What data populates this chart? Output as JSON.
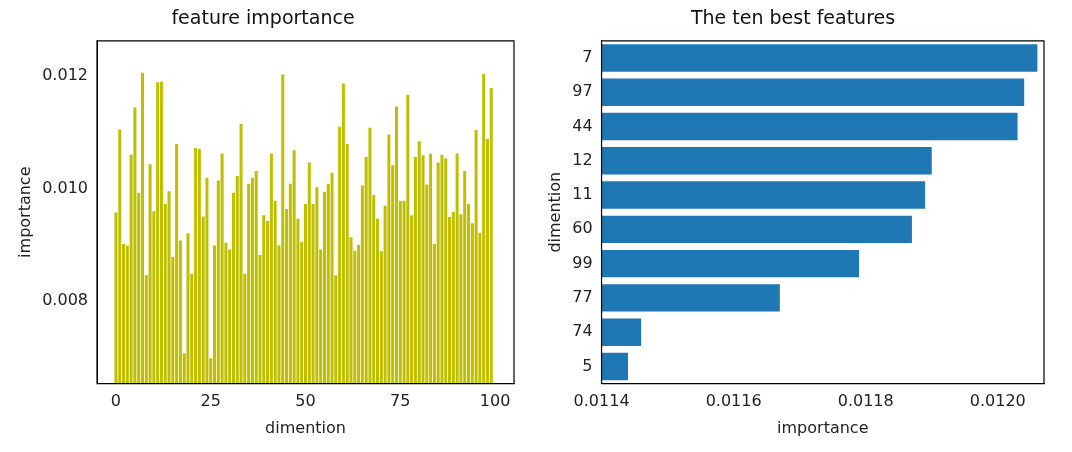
{
  "chart_data": [
    {
      "type": "bar",
      "title": "feature importance",
      "xlabel": "dimention",
      "ylabel": "importance",
      "x": [
        0,
        1,
        2,
        3,
        4,
        5,
        6,
        7,
        8,
        9,
        10,
        11,
        12,
        13,
        14,
        15,
        16,
        17,
        18,
        19,
        20,
        21,
        22,
        23,
        24,
        25,
        26,
        27,
        28,
        29,
        30,
        31,
        32,
        33,
        34,
        35,
        36,
        37,
        38,
        39,
        40,
        41,
        42,
        43,
        44,
        45,
        46,
        47,
        48,
        49,
        50,
        51,
        52,
        53,
        54,
        55,
        56,
        57,
        58,
        59,
        60,
        61,
        62,
        63,
        64,
        65,
        66,
        67,
        68,
        69,
        70,
        71,
        72,
        73,
        74,
        75,
        76,
        77,
        78,
        79,
        80,
        81,
        82,
        83,
        84,
        85,
        86,
        87,
        88,
        89,
        90,
        91,
        92,
        93,
        94,
        95,
        96,
        97,
        98,
        99
      ],
      "values": [
        0.00957,
        0.01105,
        0.00901,
        0.00898,
        0.0106,
        0.01144,
        0.00992,
        0.01206,
        0.00845,
        0.01043,
        0.00959,
        0.01189,
        0.0119,
        0.00972,
        0.00995,
        0.00878,
        0.01079,
        0.00907,
        0.00706,
        0.0092,
        0.00848,
        0.01072,
        0.0107,
        0.0095,
        0.01019,
        0.00697,
        0.00898,
        0.01014,
        0.01062,
        0.00903,
        0.00891,
        0.00992,
        0.01022,
        0.01115,
        0.00848,
        0.01008,
        0.01019,
        0.01031,
        0.00881,
        0.00952,
        0.00942,
        0.01062,
        0.00978,
        0.00898,
        0.01203,
        0.00963,
        0.01008,
        0.01068,
        0.00946,
        0.00905,
        0.00972,
        0.01046,
        0.00972,
        0.01002,
        0.00891,
        0.00994,
        0.01008,
        0.01028,
        0.00845,
        0.0111,
        0.01187,
        0.01079,
        0.00913,
        0.00889,
        0.00899,
        0.01005,
        0.01056,
        0.01108,
        0.00988,
        0.00946,
        0.00888,
        0.00969,
        0.01096,
        0.01041,
        0.01146,
        0.00978,
        0.00978,
        0.01167,
        0.00952,
        0.01056,
        0.01084,
        0.01059,
        0.01007,
        0.01062,
        0.00901,
        0.01046,
        0.0106,
        0.01053,
        0.00949,
        0.00958,
        0.01062,
        0.00954,
        0.01031,
        0.00972,
        0.00938,
        0.01104,
        0.00921,
        0.01204,
        0.01088,
        0.01179
      ],
      "color": "#bfbf00",
      "xlim": [
        -5,
        105
      ],
      "xticks": [
        0,
        25,
        50,
        75,
        100
      ],
      "ylim": [
        0.00652,
        0.01263
      ],
      "yticks": [
        0.008,
        {
          "value": 0.01,
          "label": "0.010"
        },
        0.012
      ]
    },
    {
      "type": "bar",
      "orientation": "horizontal",
      "title": "The ten best features",
      "xlabel": "importance",
      "ylabel": "dimention",
      "categories": [
        "7",
        "97",
        "44",
        "12",
        "11",
        "60",
        "99",
        "77",
        "74",
        "5"
      ],
      "values": [
        0.01206,
        0.01204,
        0.01203,
        0.0119,
        0.01189,
        0.01187,
        0.01179,
        0.01167,
        0.01146,
        0.01144
      ],
      "color": "#1f77b4",
      "xlim": [
        0.0114,
        0.01207
      ],
      "xticks": [
        0.0114,
        0.0116,
        0.0118,
        {
          "value": 0.012,
          "label": "0.0120"
        }
      ]
    }
  ]
}
